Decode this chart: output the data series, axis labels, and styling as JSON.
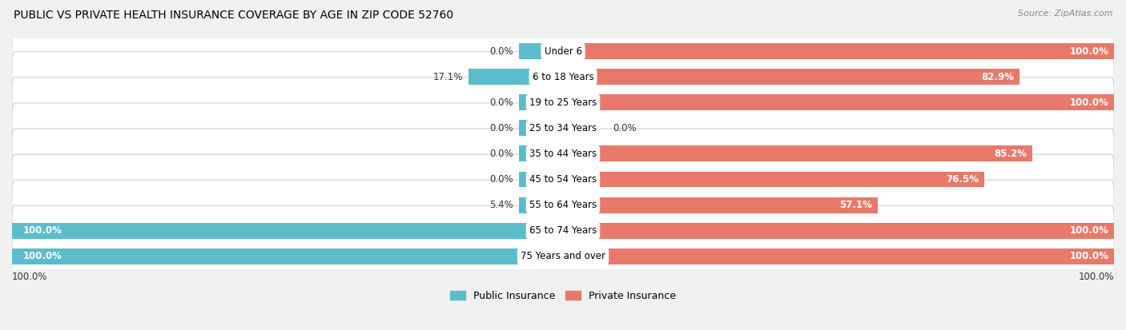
{
  "title": "PUBLIC VS PRIVATE HEALTH INSURANCE COVERAGE BY AGE IN ZIP CODE 52760",
  "source": "Source: ZipAtlas.com",
  "categories": [
    "Under 6",
    "6 to 18 Years",
    "19 to 25 Years",
    "25 to 34 Years",
    "35 to 44 Years",
    "45 to 54 Years",
    "55 to 64 Years",
    "65 to 74 Years",
    "75 Years and over"
  ],
  "public_values": [
    0.0,
    17.1,
    0.0,
    0.0,
    0.0,
    0.0,
    5.4,
    100.0,
    100.0
  ],
  "private_values": [
    100.0,
    82.9,
    100.0,
    0.0,
    85.2,
    76.5,
    57.1,
    100.0,
    100.0
  ],
  "public_color": "#5bbccc",
  "private_color": "#e8796a",
  "background_color": "#f0f0f0",
  "row_background": "#ffffff",
  "row_edge_color": "#d0d0d0",
  "label_color_white": "#ffffff",
  "label_color_dark": "#333333",
  "title_fontsize": 10,
  "source_fontsize": 8,
  "bar_label_fontsize": 8.5,
  "category_fontsize": 8.5,
  "legend_fontsize": 9,
  "axis_label_fontsize": 8.5,
  "bar_height": 0.62,
  "min_bar_width": 8.0,
  "figsize": [
    14.06,
    4.13
  ]
}
